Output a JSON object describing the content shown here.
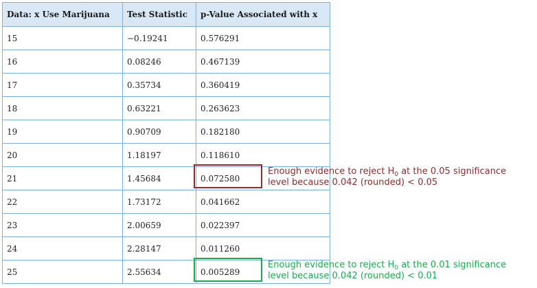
{
  "table": {
    "headers": [
      "Data: x Use Marijuana",
      "Test Statistic",
      "p-Value Associated with x"
    ],
    "rows": [
      [
        "15",
        "−0.19241",
        "0.576291"
      ],
      [
        "16",
        "0.08246",
        "0.467139"
      ],
      [
        "17",
        "0.35734",
        "0.360419"
      ],
      [
        "18",
        "0.63221",
        "0.263623"
      ],
      [
        "19",
        "0.90709",
        "0.182180"
      ],
      [
        "20",
        "1.18197",
        "0.118610"
      ],
      [
        "21",
        "1.45684",
        "0.072580"
      ],
      [
        "22",
        "1.73172",
        "0.041662"
      ],
      [
        "23",
        "2.00659",
        "0.022397"
      ],
      [
        "24",
        "2.28147",
        "0.011260"
      ],
      [
        "25",
        "2.55634",
        "0.005289"
      ]
    ]
  },
  "annotations": {
    "red": {
      "line1_a": "Enough evidence to reject H",
      "sub": "0",
      "line1_b": " at the 0.05 significance",
      "line2": "level because 0.042 (rounded) < 0.05",
      "color": "#8b2e2e"
    },
    "green": {
      "line1_a": "Enough evidence to reject H",
      "sub": "0",
      "line1_b": " at the 0.01 significance",
      "line2": "level because 0.042 (rounded) < 0.01",
      "color": "#1aa84a"
    }
  }
}
